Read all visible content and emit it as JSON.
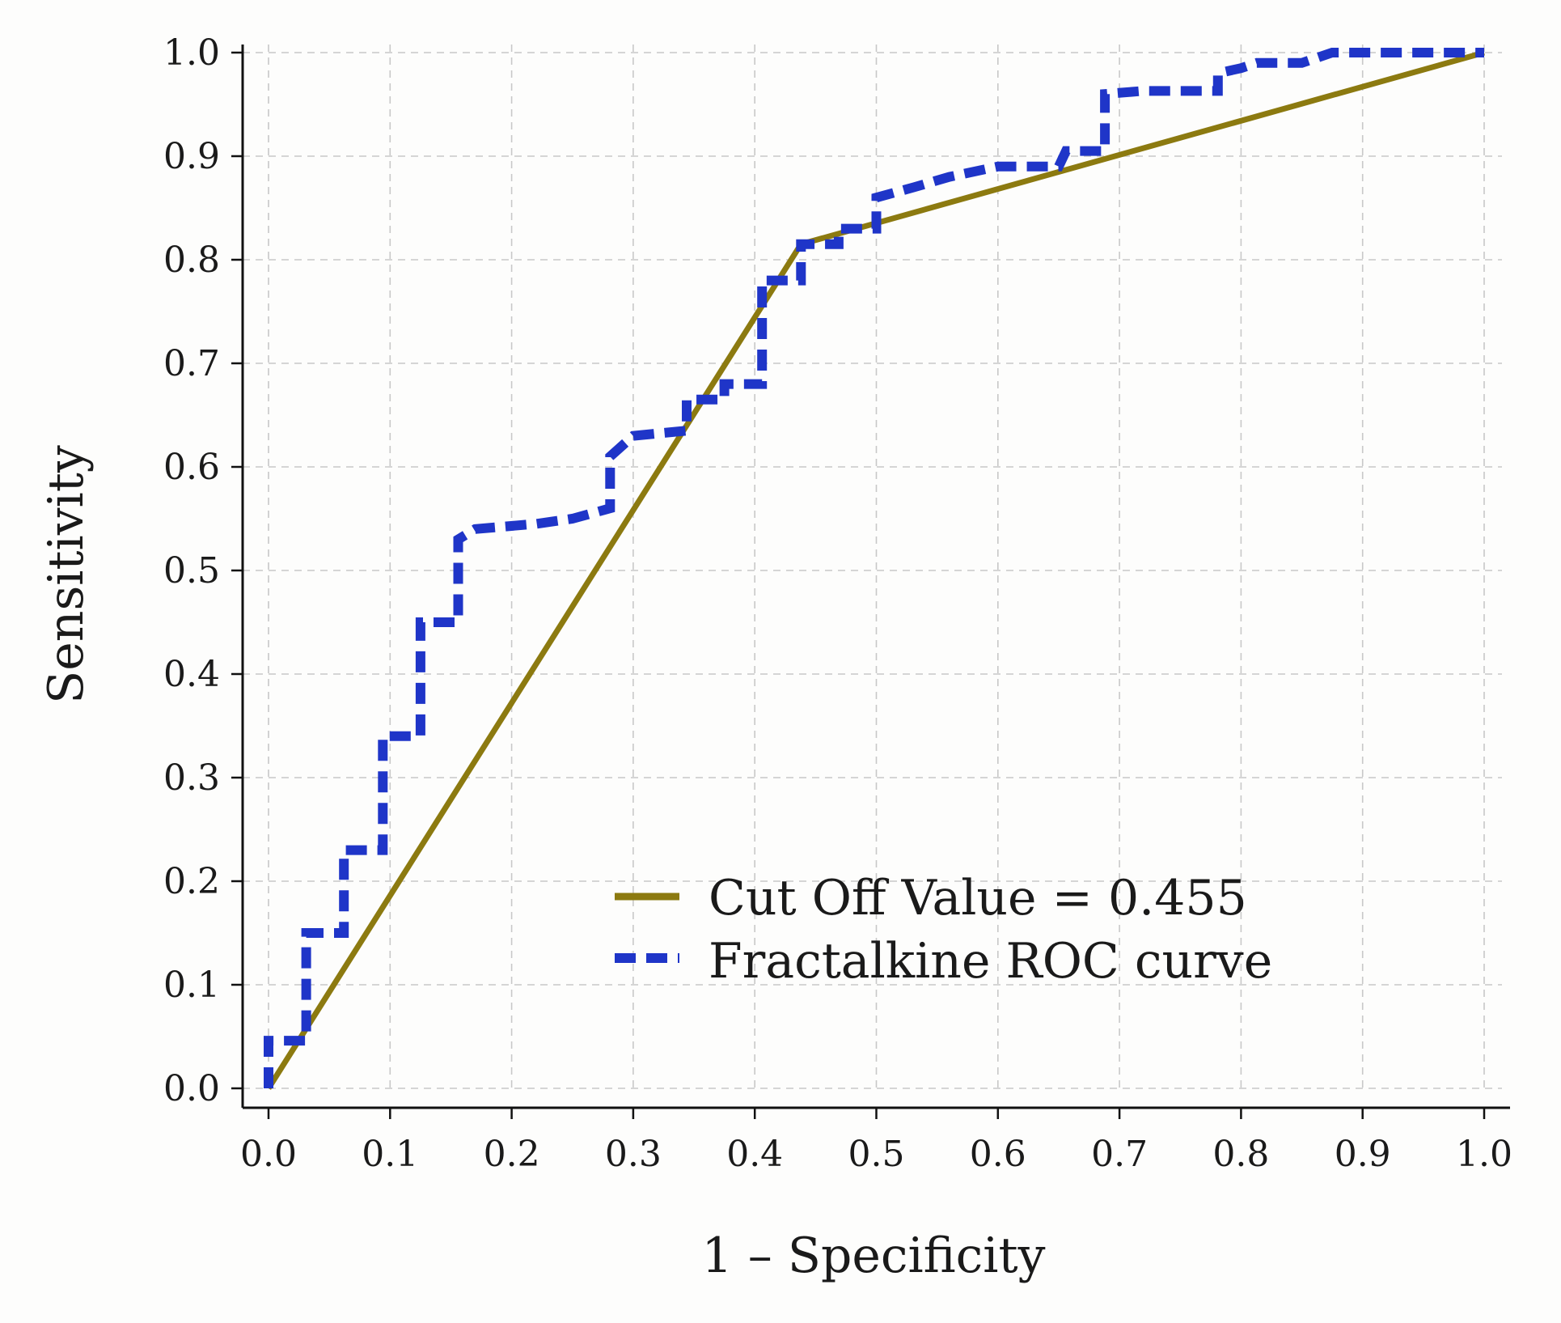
{
  "chart_data": {
    "type": "line",
    "title": "",
    "xlabel": "1 – Specificity",
    "ylabel": "Sensitivity",
    "xlim": [
      0,
      1
    ],
    "ylim": [
      0,
      1
    ],
    "grid": true,
    "x_ticks": [
      "0.0",
      "0.1",
      "0.2",
      "0.3",
      "0.4",
      "0.5",
      "0.6",
      "0.7",
      "0.8",
      "0.9",
      "1.0"
    ],
    "y_ticks": [
      "0.0",
      "0.1",
      "0.2",
      "0.3",
      "0.4",
      "0.5",
      "0.6",
      "0.7",
      "0.8",
      "0.9",
      "1.0"
    ],
    "legend_position": "lower-right",
    "series": [
      {
        "name": "Cut Off Value = 0.455",
        "style": "solid",
        "color": "#8c7a10",
        "x": [
          0.0,
          0.438,
          1.0
        ],
        "y": [
          0.0,
          0.815,
          1.0
        ]
      },
      {
        "name": "Fractalkine ROC curve",
        "style": "dashed",
        "color": "#1f35c8",
        "x": [
          0.0,
          0.0,
          0.031,
          0.031,
          0.062,
          0.062,
          0.094,
          0.094,
          0.125,
          0.125,
          0.156,
          0.156,
          0.17,
          0.22,
          0.25,
          0.281,
          0.281,
          0.3,
          0.344,
          0.344,
          0.375,
          0.375,
          0.406,
          0.406,
          0.438,
          0.438,
          0.469,
          0.469,
          0.5,
          0.5,
          0.531,
          0.56,
          0.6,
          0.65,
          0.656,
          0.688,
          0.688,
          0.719,
          0.75,
          0.781,
          0.781,
          0.8,
          0.813,
          0.85,
          0.875,
          0.9,
          1.0
        ],
        "y": [
          0.0,
          0.046,
          0.046,
          0.15,
          0.15,
          0.23,
          0.23,
          0.34,
          0.34,
          0.45,
          0.45,
          0.53,
          0.54,
          0.545,
          0.55,
          0.56,
          0.61,
          0.63,
          0.635,
          0.665,
          0.665,
          0.68,
          0.68,
          0.78,
          0.78,
          0.815,
          0.815,
          0.83,
          0.83,
          0.86,
          0.87,
          0.88,
          0.89,
          0.89,
          0.905,
          0.905,
          0.96,
          0.963,
          0.963,
          0.963,
          0.98,
          0.985,
          0.99,
          0.99,
          1.0,
          1.0,
          1.0
        ]
      }
    ]
  }
}
